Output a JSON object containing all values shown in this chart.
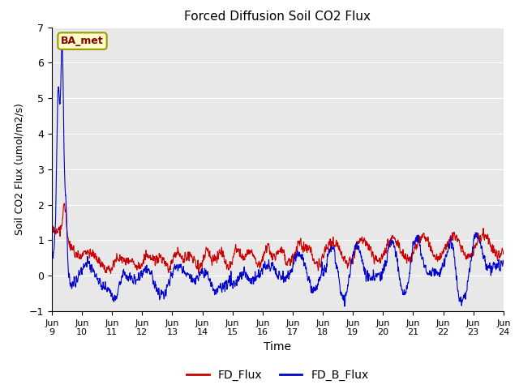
{
  "title": "Forced Diffusion Soil CO2 Flux",
  "xlabel": "Time",
  "ylabel_display": "Soil CO2 Flux (umol/m2/s)",
  "ylim": [
    -1.0,
    7.0
  ],
  "yticks": [
    -1.0,
    0.0,
    1.0,
    2.0,
    3.0,
    4.0,
    5.0,
    6.0,
    7.0
  ],
  "site_label": "BA_met",
  "line1_color": "#cc0000",
  "line2_color": "#0000cc",
  "line1_label": "FD_Flux",
  "line2_label": "FD_B_Flux",
  "background_color": "#e8e8e8",
  "grid_color": "#ffffff",
  "line_width": 0.8,
  "n_points": 2160,
  "x_tick_positions": [
    0,
    1,
    2,
    3,
    4,
    5,
    6,
    7,
    8,
    9,
    10,
    11,
    12,
    13,
    14,
    15
  ],
  "x_tick_labels": [
    "Jun\n9",
    "Jun\n10",
    "Jun\n11",
    "Jun\n12",
    "Jun\n13",
    "Jun\n14",
    "Jun\n15",
    "Jun\n16",
    "Jun\n17",
    "Jun\n18",
    "Jun\n19",
    "Jun\n20",
    "Jun\n21",
    "Jun\n22",
    "Jun\n23",
    "Jun\n24"
  ]
}
